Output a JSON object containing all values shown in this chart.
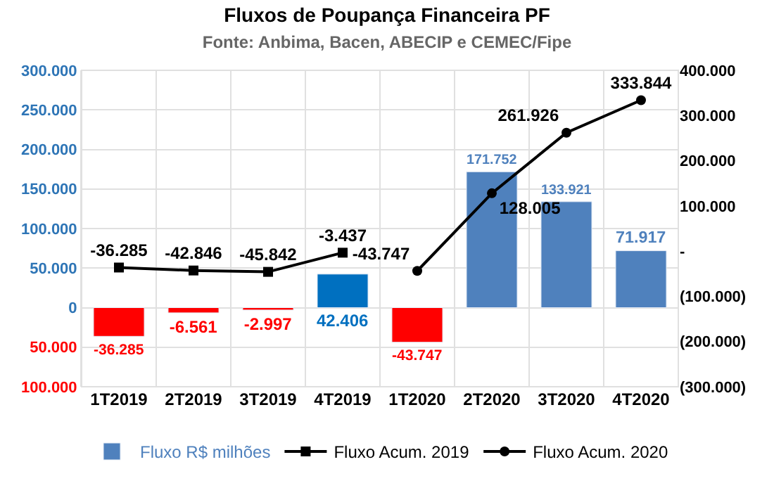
{
  "chart_data": {
    "type": "bar",
    "title": "Fluxos de Poupança Financeira PF",
    "subtitle": "Fonte: Anbima, Bacen, ABECIP e CEMEC/Fipe",
    "categories": [
      "1T2019",
      "2T2019",
      "3T2019",
      "4T2019",
      "1T2020",
      "2T2020",
      "3T2020",
      "4T2020"
    ],
    "series": [
      {
        "name": "Fluxo R$ milhões",
        "color": "#4f81bd",
        "colors": [
          "#ff0000",
          "#ff0000",
          "#ff0000",
          "#0070c0",
          "#ff0000",
          "#4f81bd",
          "#4f81bd",
          "#4f81bd"
        ],
        "values": [
          -36285,
          -6561,
          -2997,
          42406,
          -43747,
          171752,
          133921,
          71917
        ],
        "value_labels": [
          "-36.285",
          "-6.561",
          "-2.997",
          "42.406",
          "-43.747",
          "171.752",
          "133.921",
          "71.917"
        ]
      },
      {
        "name": "Fluxo Acum. 2019",
        "type": "line",
        "axis": "y2",
        "color": "#000000",
        "marker": "square",
        "values": [
          -36285,
          -42846,
          -45842,
          -3437,
          null,
          null,
          null,
          null
        ],
        "value_labels": [
          "-36.285",
          "-42.846",
          "-45.842",
          "-3.437",
          null,
          null,
          null,
          null
        ]
      },
      {
        "name": "Fluxo Acum. 2020",
        "type": "line",
        "axis": "y2",
        "color": "#000000",
        "marker": "circle",
        "values": [
          null,
          null,
          null,
          null,
          -43747,
          128005,
          261926,
          333844
        ],
        "value_labels": [
          null,
          null,
          null,
          null,
          "-43.747",
          "128.005",
          "261.926",
          "333.844"
        ]
      }
    ],
    "ylim": [
      -100000,
      300000
    ],
    "yticks": [
      {
        "value": -100000,
        "label": "100.000"
      },
      {
        "value": -50000,
        "label": "50.000"
      },
      0,
      {
        "value": 50000,
        "label": "50.000"
      },
      {
        "value": 100000,
        "label": "100.000"
      },
      {
        "value": 150000,
        "label": "150.000"
      },
      {
        "value": 200000,
        "label": "200.000"
      },
      {
        "value": 250000,
        "label": "250.000"
      },
      {
        "value": 300000,
        "label": "300.000"
      }
    ],
    "y2lim": [
      -300000,
      400000
    ],
    "y2ticks": [
      {
        "value": -300000,
        "label": "(300.000)"
      },
      {
        "value": -200000,
        "label": "(200.000)"
      },
      {
        "value": -100000,
        "label": "(100.000)"
      },
      {
        "value": 0,
        "label": "-"
      },
      {
        "value": 100000,
        "label": "100.000"
      },
      {
        "value": 200000,
        "label": "200.000"
      },
      {
        "value": 300000,
        "label": "300.000"
      },
      {
        "value": 400000,
        "label": "400.000"
      }
    ],
    "grid": true,
    "legend": "bottom"
  }
}
